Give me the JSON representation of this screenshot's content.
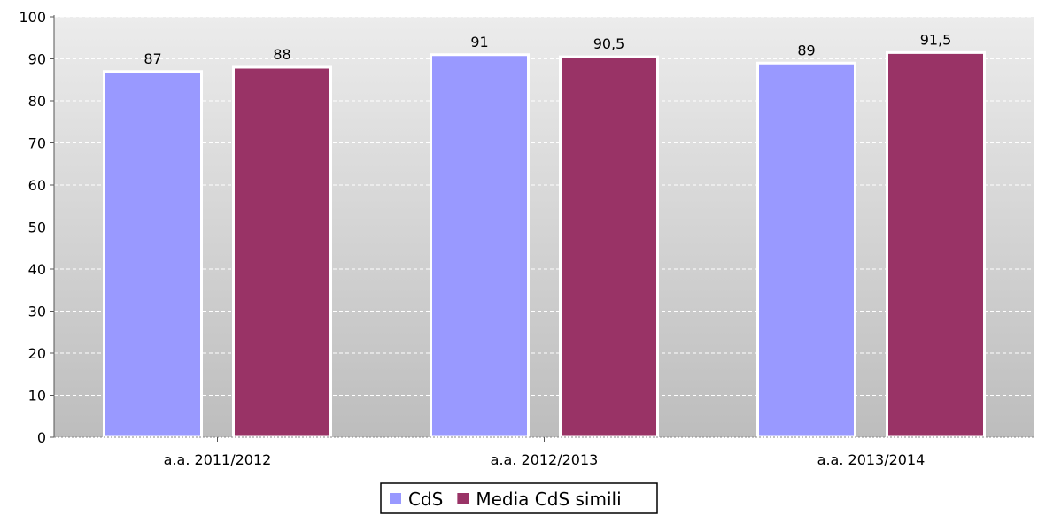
{
  "chart_data": {
    "type": "bar",
    "categories": [
      "a.a. 2011/2012",
      "a.a. 2012/2013",
      "a.a. 2013/2014"
    ],
    "series": [
      {
        "name": "CdS",
        "values": [
          87,
          91,
          89
        ],
        "value_labels": [
          "87",
          "91",
          "89"
        ],
        "color": "#9999ff"
      },
      {
        "name": "Media CdS simili",
        "values": [
          88,
          90.5,
          91.5
        ],
        "value_labels": [
          "88",
          "90,5",
          "91,5"
        ],
        "color": "#993366"
      }
    ],
    "title": "",
    "xlabel": "",
    "ylabel": "",
    "ylim": [
      0,
      100
    ],
    "yticks": [
      0,
      10,
      20,
      30,
      40,
      50,
      60,
      70,
      80,
      90,
      100
    ],
    "grid": true,
    "legend_position": "bottom",
    "background": {
      "gradient_top": "#ececec",
      "gradient_bottom": "#bdbdbd"
    }
  }
}
